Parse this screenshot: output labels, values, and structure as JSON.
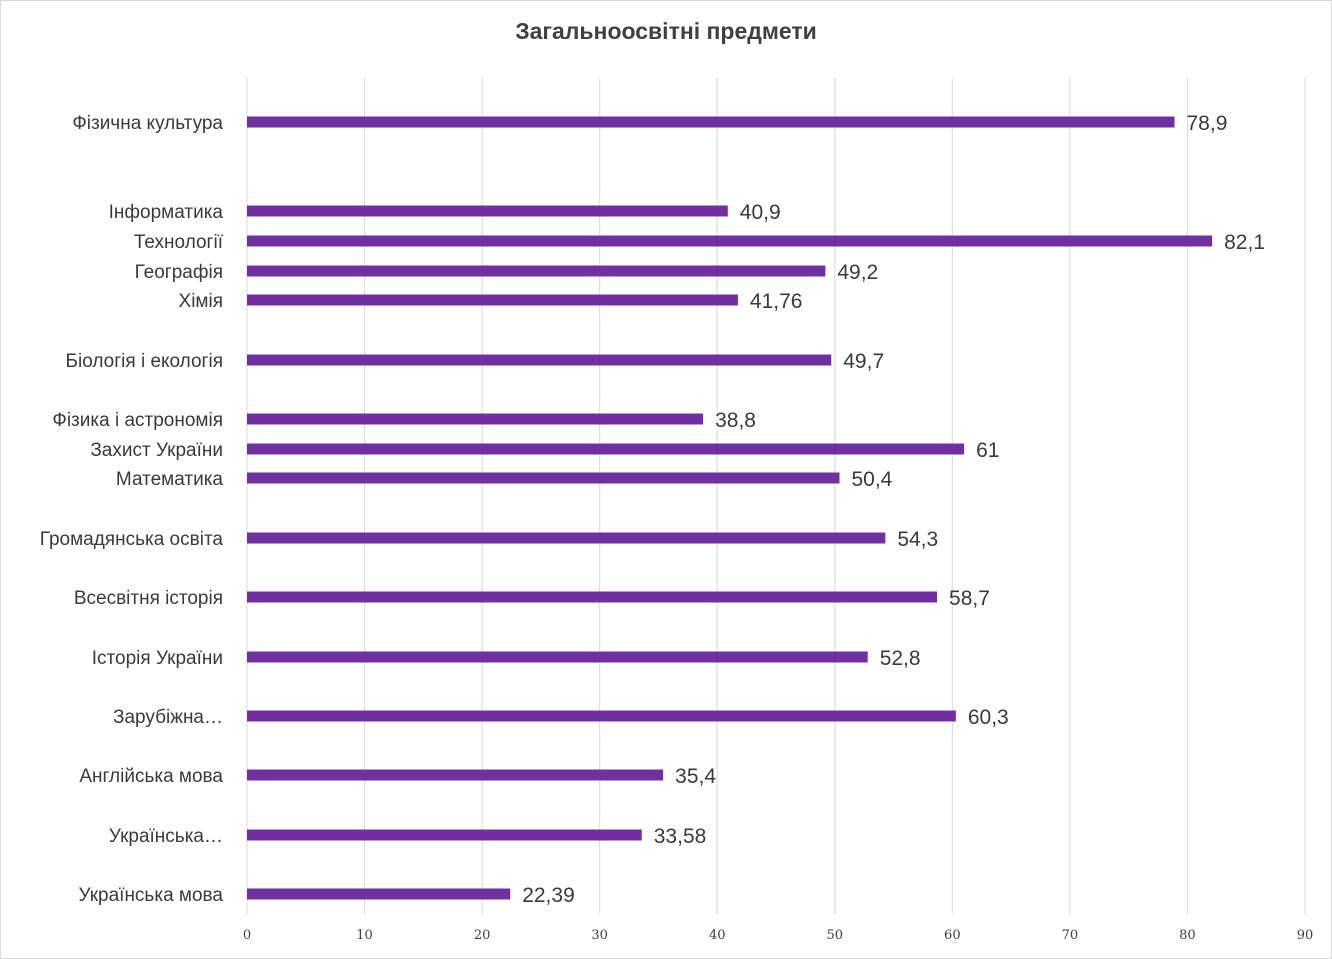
{
  "chart_data": {
    "type": "bar",
    "orientation": "horizontal",
    "title": "Загальноосвітні предмети",
    "categories": [
      "Українська мова",
      "Українська…",
      "Англійська мова",
      "Зарубіжна…",
      "Історія України",
      "Всесвітня історія",
      "Громадянська освіта",
      "Математика",
      "Захист України",
      "Фізика і астрономія",
      "Біологія і екологія",
      "Хімія",
      "Географія",
      "Технології",
      "Інформатика",
      "Фізична культура"
    ],
    "values": [
      22.39,
      33.58,
      35.4,
      60.3,
      52.8,
      58.7,
      54.3,
      50.4,
      61,
      38.8,
      49.7,
      41.76,
      49.2,
      82.1,
      40.9,
      78.9
    ],
    "value_labels": [
      "22,39",
      "33,58",
      "35,4",
      "60,3",
      "52,8",
      "58,7",
      "54,3",
      "50,4",
      "61",
      "38,8",
      "49,7",
      "41,76",
      "49,2",
      "82,1",
      "40,9",
      "78,9"
    ],
    "xlim": [
      0,
      90
    ],
    "x_ticks": [
      "0",
      "10",
      "20",
      "30",
      "40",
      "50",
      "60",
      "70",
      "80",
      "90"
    ],
    "grid": true,
    "bar_color": "#7030a0",
    "gridline_color": "#d9d9d9"
  }
}
